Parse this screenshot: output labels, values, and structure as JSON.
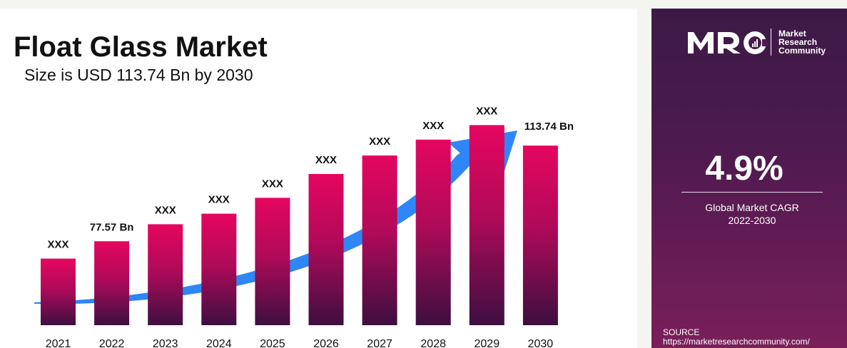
{
  "title": "Float Glass Market",
  "subtitle": "Size is USD 113.74 Bn by 2030",
  "logo": {
    "line1": "Market",
    "line2": "Research",
    "line3": "Community"
  },
  "cagr": {
    "value": "4.9%",
    "label_line1": "Global Market CAGR",
    "label_line2": "2022-2030"
  },
  "source": {
    "label": "SOURCE",
    "url": "https://marketresearchcommunity.com/"
  },
  "colors": {
    "bar_top": "#e5065f",
    "bar_bottom": "#3d0f40",
    "arrow": "#2f86f5",
    "panel": "#4a1a4c"
  },
  "chart_data": {
    "type": "bar",
    "categories": [
      "2021",
      "2022",
      "2023",
      "2024",
      "2025",
      "2026",
      "2027",
      "2028",
      "2029",
      "2030"
    ],
    "values": [
      71,
      77.57,
      84,
      88,
      94,
      103,
      110,
      116,
      121.5,
      113.74
    ],
    "data_labels": [
      "XXX",
      "77.57 Bn",
      "XXX",
      "XXX",
      "XXX",
      "XXX",
      "XXX",
      "XXX",
      "XXX",
      "113.74 Bn"
    ],
    "title": "Float Glass Market",
    "subtitle": "Size is USD 113.74 Bn by 2030",
    "xlabel": "",
    "ylabel": "",
    "unit": "Bn",
    "trend_arrow": true,
    "grid": false
  }
}
